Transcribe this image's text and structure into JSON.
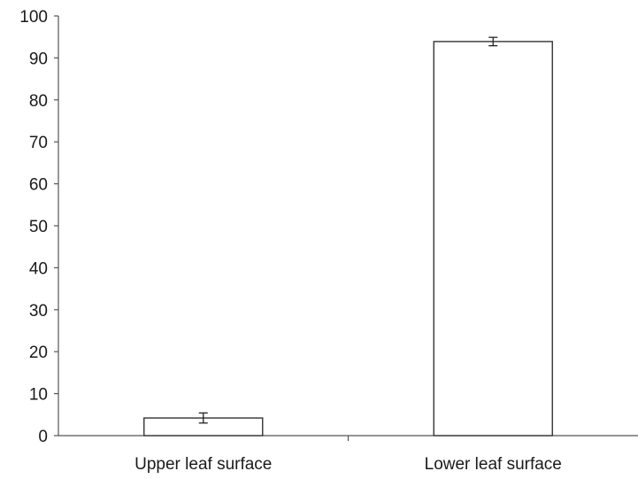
{
  "chart_data": {
    "type": "bar",
    "categories": [
      "Upper leaf surface",
      "Lower leaf surface"
    ],
    "values": [
      4.2,
      93.9
    ],
    "error": [
      1.2,
      1.0
    ],
    "ylim": [
      0,
      100
    ],
    "yticks": [
      0,
      10,
      20,
      30,
      40,
      50,
      60,
      70,
      80,
      90,
      100
    ],
    "ytick_labels": [
      "0",
      "10",
      "20",
      "30",
      "40",
      "50",
      "60",
      "70",
      "80",
      "90",
      "100"
    ],
    "grid": false,
    "legend": "none",
    "colors": {
      "bar_fill": "#ffffff",
      "bar_stroke": "#333333",
      "axis": "#555555",
      "text": "#1a1a1a"
    }
  }
}
